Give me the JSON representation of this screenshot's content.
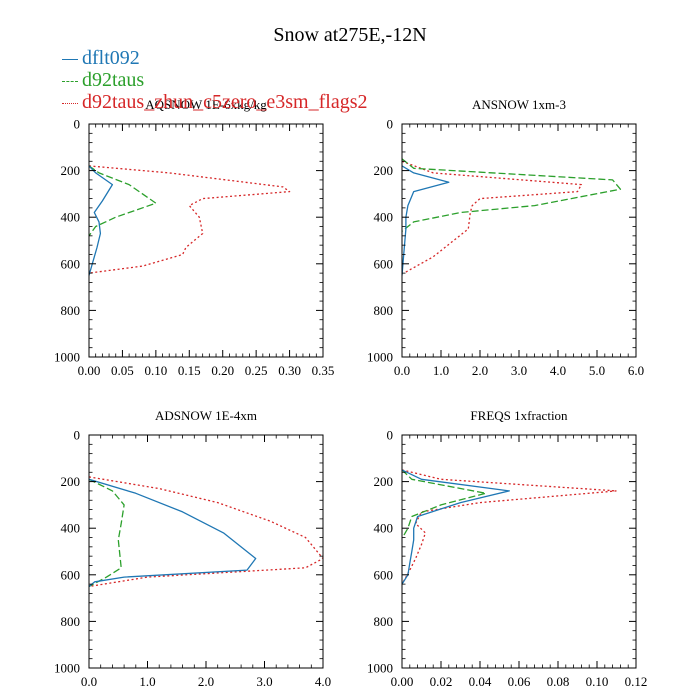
{
  "figure_title": "Snow at275E,-12N",
  "legend": [
    {
      "label": "dflt092",
      "color": "#1f77b4",
      "style": "solid"
    },
    {
      "label": "d92taus",
      "color": "#2ca02c",
      "style": "dash"
    },
    {
      "label": "d92taus_zhun_c5zero_e3sm_flags2",
      "color": "#d62728",
      "style": "dot"
    }
  ],
  "chart_data": [
    {
      "type": "line",
      "title": "AQSNOW  1E-6xkg/kg",
      "xlim": [
        0,
        0.35
      ],
      "xticks": [
        "0.00",
        "0.05",
        "0.10",
        "0.15",
        "0.20",
        "0.25",
        "0.30",
        "0.35"
      ],
      "xtick_values": [
        0,
        0.05,
        0.1,
        0.15,
        0.2,
        0.25,
        0.3,
        0.35
      ],
      "ylim": [
        0,
        1000
      ],
      "yticks": [
        "0",
        "200",
        "400",
        "600",
        "800",
        "1000"
      ],
      "y_inverted": true,
      "series": [
        {
          "name": "dflt092",
          "x": [
            0,
            0.01,
            0.035,
            0.02,
            0.008,
            0.015,
            0.017,
            0.012,
            0.005,
            0
          ],
          "y": [
            180,
            210,
            260,
            330,
            380,
            420,
            470,
            530,
            600,
            650
          ]
        },
        {
          "name": "d92taus",
          "x": [
            0,
            0.015,
            0.06,
            0.1,
            0.04,
            0.01,
            0
          ],
          "y": [
            180,
            210,
            260,
            340,
            400,
            440,
            480
          ]
        },
        {
          "name": "d92taus_zhun_c5zero_e3sm_flags2",
          "x": [
            0,
            0.12,
            0.29,
            0.3,
            0.17,
            0.15,
            0.165,
            0.17,
            0.145,
            0.14,
            0.08,
            0
          ],
          "y": [
            180,
            210,
            270,
            290,
            320,
            350,
            400,
            470,
            530,
            560,
            610,
            640
          ]
        }
      ]
    },
    {
      "type": "line",
      "title": "ANSNOW  1xm-3",
      "xlim": [
        0,
        6
      ],
      "xticks": [
        "0.0",
        "1.0",
        "2.0",
        "3.0",
        "4.0",
        "5.0",
        "6.0"
      ],
      "xtick_values": [
        0,
        1,
        2,
        3,
        4,
        5,
        6
      ],
      "ylim": [
        0,
        1000
      ],
      "yticks": [
        "0",
        "200",
        "400",
        "600",
        "800",
        "1000"
      ],
      "y_inverted": true,
      "series": [
        {
          "name": "dflt092",
          "x": [
            0,
            0.3,
            1.2,
            0.3,
            0.15,
            0.1,
            0.1,
            0.05,
            0
          ],
          "y": [
            180,
            210,
            250,
            290,
            350,
            400,
            450,
            550,
            650
          ]
        },
        {
          "name": "d92taus",
          "x": [
            0,
            0.3,
            5.4,
            5.6,
            3.4,
            1.5,
            0.3,
            0
          ],
          "y": [
            150,
            190,
            240,
            280,
            350,
            380,
            420,
            460
          ]
        },
        {
          "name": "d92taus_zhun_c5zero_e3sm_flags2",
          "x": [
            0,
            0.8,
            4.6,
            4.5,
            2.0,
            1.8,
            1.75,
            1.7,
            0.8,
            0.05
          ],
          "y": [
            160,
            210,
            260,
            290,
            320,
            350,
            380,
            450,
            570,
            640
          ]
        }
      ]
    },
    {
      "type": "line",
      "title": "ADSNOW  1E-4xm",
      "xlim": [
        0,
        4
      ],
      "xticks": [
        "0.0",
        "1.0",
        "2.0",
        "3.0",
        "4.0"
      ],
      "xtick_values": [
        0,
        1,
        2,
        3,
        4
      ],
      "ylim": [
        0,
        1000
      ],
      "yticks": [
        "0",
        "200",
        "400",
        "600",
        "800",
        "1000"
      ],
      "y_inverted": true,
      "series": [
        {
          "name": "dflt092",
          "x": [
            0,
            0.8,
            1.6,
            2.3,
            2.85,
            2.7,
            0.6,
            0.1,
            0
          ],
          "y": [
            190,
            250,
            330,
            420,
            530,
            580,
            610,
            630,
            650
          ]
        },
        {
          "name": "d92taus",
          "x": [
            0,
            0.4,
            0.6,
            0.55,
            0.5,
            0.55,
            0.3,
            0
          ],
          "y": [
            190,
            240,
            300,
            380,
            450,
            570,
            610,
            650
          ]
        },
        {
          "name": "d92taus_zhun_c5zero_e3sm_flags2",
          "x": [
            0,
            1.2,
            2.2,
            3.1,
            3.7,
            4.0,
            3.7,
            1.0,
            0
          ],
          "y": [
            180,
            230,
            290,
            370,
            440,
            530,
            570,
            610,
            650
          ]
        }
      ]
    },
    {
      "type": "line",
      "title": "FREQS  1xfraction",
      "xlim": [
        0,
        0.12
      ],
      "xticks": [
        "0.00",
        "0.02",
        "0.04",
        "0.06",
        "0.08",
        "0.10",
        "0.12"
      ],
      "xtick_values": [
        0,
        0.02,
        0.04,
        0.06,
        0.08,
        0.1,
        0.12
      ],
      "ylim": [
        0,
        1000
      ],
      "yticks": [
        "0",
        "200",
        "400",
        "600",
        "800",
        "1000"
      ],
      "y_inverted": true,
      "series": [
        {
          "name": "dflt092",
          "x": [
            0,
            0.01,
            0.055,
            0.03,
            0.008,
            0.006,
            0.006,
            0.005,
            0.004,
            0.003,
            0
          ],
          "y": [
            150,
            190,
            240,
            290,
            350,
            400,
            450,
            500,
            550,
            600,
            640
          ]
        },
        {
          "name": "d92taus",
          "x": [
            0,
            0.005,
            0.043,
            0.02,
            0.005,
            0.003,
            0.001
          ],
          "y": [
            150,
            190,
            250,
            300,
            350,
            400,
            430
          ]
        },
        {
          "name": "d92taus_zhun_c5zero_e3sm_flags2",
          "x": [
            0,
            0.02,
            0.11,
            0.04,
            0.01,
            0.007,
            0.012,
            0.01,
            0.007,
            0.004,
            0
          ],
          "y": [
            150,
            190,
            240,
            290,
            330,
            380,
            420,
            470,
            530,
            580,
            640
          ]
        }
      ]
    }
  ]
}
